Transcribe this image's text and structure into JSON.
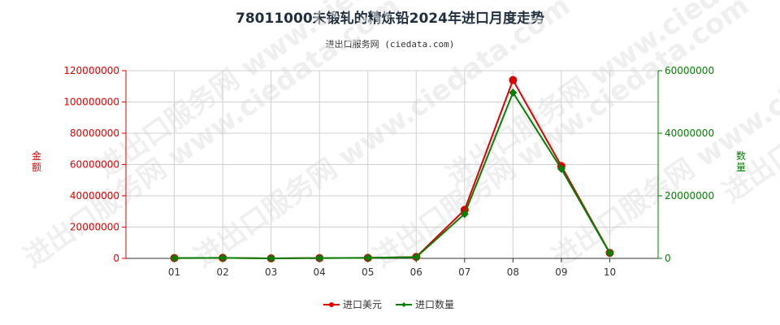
{
  "title": "78011000未锻轧的精炼铅2024年进口月度走势",
  "subtitle": "进出口服务网 (ciedata.com)",
  "watermark": "进出口服务网 www.ciedata.com",
  "colors": {
    "left_axis": "#dd0000",
    "right_axis": "#008000",
    "grid": "#d0d0d0",
    "axis": "#333333"
  },
  "chart_data": {
    "type": "line",
    "categories": [
      "01",
      "02",
      "03",
      "04",
      "05",
      "06",
      "07",
      "08",
      "09",
      "10"
    ],
    "y_left": {
      "label": "金额",
      "ylim": [
        0,
        120000000
      ],
      "ticks": [
        "0",
        "20000000",
        "40000000",
        "60000000",
        "80000000",
        "100000000",
        "120000000"
      ]
    },
    "y_right": {
      "label": "数量",
      "ylim": [
        0,
        60000000
      ],
      "ticks": [
        "0",
        "20000000",
        "40000000",
        "60000000"
      ]
    },
    "grid": true,
    "legend_position": "bottom-center",
    "series": [
      {
        "name": "进口美元",
        "axis": "left",
        "color": "#dd0000",
        "marker": "circle",
        "values": [
          200000,
          300000,
          0,
          200000,
          300000,
          900000,
          31000000,
          114000000,
          59000000,
          3500000
        ]
      },
      {
        "name": "进口数量",
        "axis": "right",
        "color": "#008000",
        "marker": "diamond",
        "values": [
          100000,
          150000,
          0,
          100000,
          150000,
          400000,
          14200000,
          53000000,
          28600000,
          1700000
        ]
      }
    ]
  }
}
